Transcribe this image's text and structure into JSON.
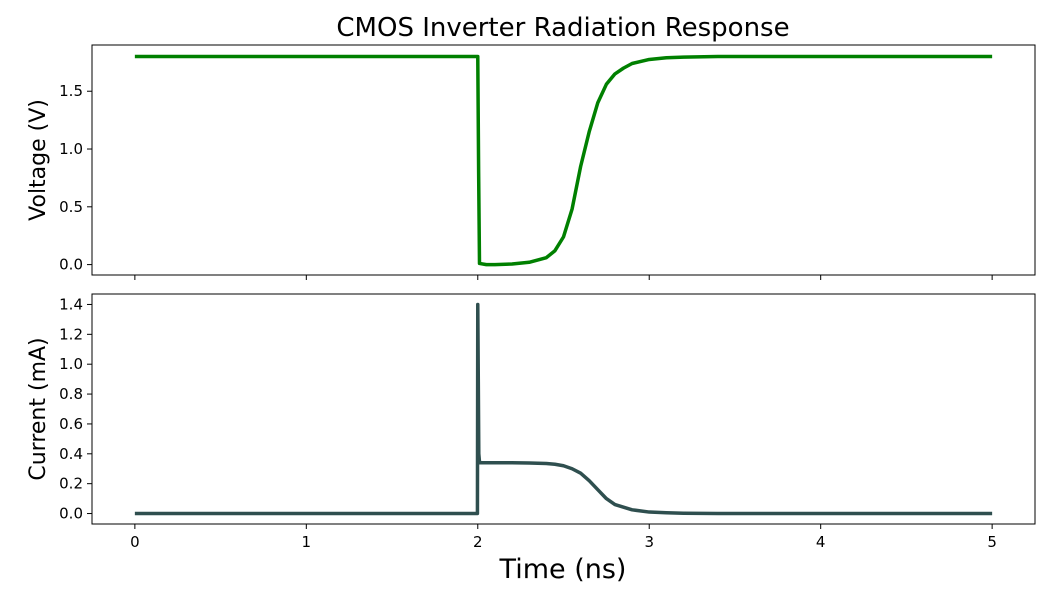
{
  "chart_data": [
    {
      "type": "line",
      "title": "CMOS Inverter Radiation Response",
      "xlabel": "",
      "ylabel": "Voltage (V)",
      "xlim": [
        -0.25,
        5.25
      ],
      "ylim": [
        -0.09,
        1.9
      ],
      "xticks": [
        0,
        1,
        2,
        3,
        4,
        5
      ],
      "yticks": [
        0.0,
        0.5,
        1.0,
        1.5
      ],
      "ytick_labels": [
        "0.0",
        "0.5",
        "1.0",
        "1.5"
      ],
      "show_x_tick_labels": false,
      "grid": false,
      "color": "#008000",
      "series": [
        {
          "x": [
            0,
            0.5,
            1.0,
            1.5,
            2.0,
            2.005,
            2.01,
            2.05,
            2.1,
            2.2,
            2.3,
            2.4,
            2.45,
            2.5,
            2.55,
            2.6,
            2.65,
            2.7,
            2.75,
            2.8,
            2.85,
            2.9,
            3.0,
            3.1,
            3.2,
            3.4,
            3.6,
            4.0,
            4.5,
            5.0
          ],
          "y": [
            1.8,
            1.8,
            1.8,
            1.8,
            1.8,
            0.8,
            0.01,
            0.0,
            0.0,
            0.005,
            0.02,
            0.06,
            0.12,
            0.24,
            0.48,
            0.85,
            1.15,
            1.4,
            1.56,
            1.65,
            1.7,
            1.74,
            1.775,
            1.79,
            1.795,
            1.8,
            1.8,
            1.8,
            1.8,
            1.8
          ]
        }
      ]
    },
    {
      "type": "line",
      "title": "",
      "xlabel": "Time (ns)",
      "ylabel": "Current (mA)",
      "xlim": [
        -0.25,
        5.25
      ],
      "ylim": [
        -0.07,
        1.47
      ],
      "xticks": [
        0,
        1,
        2,
        3,
        4,
        5
      ],
      "xtick_labels": [
        "0",
        "1",
        "2",
        "3",
        "4",
        "5"
      ],
      "yticks": [
        0.0,
        0.2,
        0.4,
        0.6,
        0.8,
        1.0,
        1.2,
        1.4
      ],
      "ytick_labels": [
        "0.0",
        "0.2",
        "0.4",
        "0.6",
        "0.8",
        "1.0",
        "1.2",
        "1.4"
      ],
      "grid": false,
      "color": "#2F4F4F",
      "series": [
        {
          "x": [
            0,
            0.5,
            1.0,
            1.5,
            1.998,
            2.0,
            2.003,
            2.006,
            2.01,
            2.02,
            2.1,
            2.2,
            2.3,
            2.4,
            2.45,
            2.5,
            2.55,
            2.6,
            2.65,
            2.7,
            2.75,
            2.8,
            2.9,
            3.0,
            3.1,
            3.2,
            3.4,
            4.0,
            4.5,
            5.0
          ],
          "y": [
            0,
            0,
            0,
            0,
            0,
            1.4,
            0.9,
            0.4,
            0.345,
            0.34,
            0.34,
            0.34,
            0.338,
            0.335,
            0.33,
            0.32,
            0.3,
            0.27,
            0.22,
            0.16,
            0.1,
            0.06,
            0.025,
            0.01,
            0.005,
            0.002,
            0.0,
            0.0,
            0.0,
            0.0
          ]
        },
        {
          "x": [
            2.0,
            2.2
          ],
          "y": [
            0.34,
            0.34
          ]
        }
      ]
    }
  ]
}
